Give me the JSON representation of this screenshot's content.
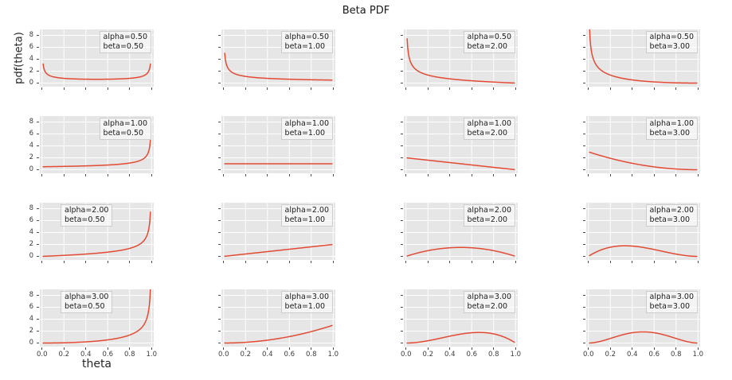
{
  "title": "Beta PDF",
  "ylabel": "pdf(theta)",
  "xlabel": "theta",
  "colors": {
    "line": "#e24a33",
    "plot_bg": "#e6e6e6",
    "grid": "#ffffff",
    "tick": "#4d4d4d",
    "tick_label": "#3b3b3b",
    "annotation_bg": "rgba(255,255,255,0.55)",
    "annotation_border": "#cccccc"
  },
  "chart_data": {
    "type": "line",
    "title": "Beta PDF",
    "xlabel": "theta",
    "ylabel": "pdf(theta)",
    "grid": true,
    "legend": "none",
    "rows": 4,
    "cols": 4,
    "xlim": [
      -0.02,
      1.02
    ],
    "ylim": [
      -0.6,
      9.0
    ],
    "xticks": [
      0,
      0.2,
      0.4,
      0.6,
      0.8,
      1.0
    ],
    "xtick_labels": [
      "0.0",
      "0.2",
      "0.4",
      "0.6",
      "0.8",
      "1.0"
    ],
    "yticks": [
      0,
      2,
      4,
      6,
      8
    ],
    "ytick_labels": [
      "0",
      "2",
      "4",
      "6",
      "8"
    ],
    "function": "beta_pdf(theta; alpha, beta)",
    "x_sampled": {
      "start": 0.01,
      "stop": 0.99,
      "points": 197
    },
    "panels": [
      {
        "row": 1,
        "col": 1,
        "alpha": 0.5,
        "beta": 0.5,
        "annotation": [
          "alpha=0.50",
          "beta=0.50"
        ],
        "annotation_side": "right"
      },
      {
        "row": 1,
        "col": 2,
        "alpha": 0.5,
        "beta": 1.0,
        "annotation": [
          "alpha=0.50",
          "beta=1.00"
        ],
        "annotation_side": "right"
      },
      {
        "row": 1,
        "col": 3,
        "alpha": 0.5,
        "beta": 2.0,
        "annotation": [
          "alpha=0.50",
          "beta=2.00"
        ],
        "annotation_side": "right"
      },
      {
        "row": 1,
        "col": 4,
        "alpha": 0.5,
        "beta": 3.0,
        "annotation": [
          "alpha=0.50",
          "beta=3.00"
        ],
        "annotation_side": "right"
      },
      {
        "row": 2,
        "col": 1,
        "alpha": 1.0,
        "beta": 0.5,
        "annotation": [
          "alpha=1.00",
          "beta=0.50"
        ],
        "annotation_side": "right"
      },
      {
        "row": 2,
        "col": 2,
        "alpha": 1.0,
        "beta": 1.0,
        "annotation": [
          "alpha=1.00",
          "beta=1.00"
        ],
        "annotation_side": "right"
      },
      {
        "row": 2,
        "col": 3,
        "alpha": 1.0,
        "beta": 2.0,
        "annotation": [
          "alpha=1.00",
          "beta=2.00"
        ],
        "annotation_side": "right"
      },
      {
        "row": 2,
        "col": 4,
        "alpha": 1.0,
        "beta": 3.0,
        "annotation": [
          "alpha=1.00",
          "beta=3.00"
        ],
        "annotation_side": "right"
      },
      {
        "row": 3,
        "col": 1,
        "alpha": 2.0,
        "beta": 0.5,
        "annotation": [
          "alpha=2.00",
          "beta=0.50"
        ],
        "annotation_side": "left"
      },
      {
        "row": 3,
        "col": 2,
        "alpha": 2.0,
        "beta": 1.0,
        "annotation": [
          "alpha=2.00",
          "beta=1.00"
        ],
        "annotation_side": "right"
      },
      {
        "row": 3,
        "col": 3,
        "alpha": 2.0,
        "beta": 2.0,
        "annotation": [
          "alpha=2.00",
          "beta=2.00"
        ],
        "annotation_side": "right"
      },
      {
        "row": 3,
        "col": 4,
        "alpha": 2.0,
        "beta": 3.0,
        "annotation": [
          "alpha=2.00",
          "beta=3.00"
        ],
        "annotation_side": "right"
      },
      {
        "row": 4,
        "col": 1,
        "alpha": 3.0,
        "beta": 0.5,
        "annotation": [
          "alpha=3.00",
          "beta=0.50"
        ],
        "annotation_side": "left"
      },
      {
        "row": 4,
        "col": 2,
        "alpha": 3.0,
        "beta": 1.0,
        "annotation": [
          "alpha=3.00",
          "beta=1.00"
        ],
        "annotation_side": "right"
      },
      {
        "row": 4,
        "col": 3,
        "alpha": 3.0,
        "beta": 2.0,
        "annotation": [
          "alpha=3.00",
          "beta=2.00"
        ],
        "annotation_side": "right"
      },
      {
        "row": 4,
        "col": 4,
        "alpha": 3.0,
        "beta": 3.0,
        "annotation": [
          "alpha=3.00",
          "beta=3.00"
        ],
        "annotation_side": "right"
      }
    ]
  }
}
